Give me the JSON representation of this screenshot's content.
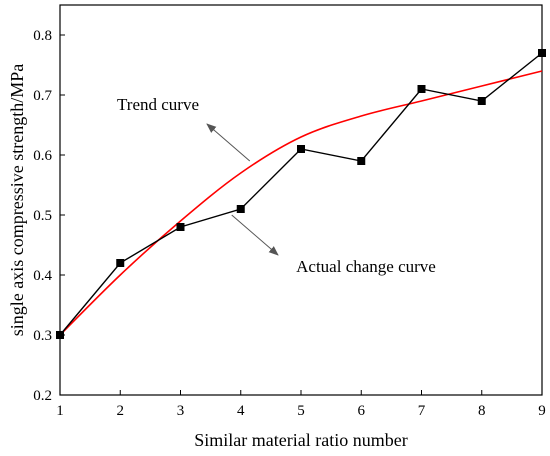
{
  "chart_data": {
    "type": "line",
    "title": "",
    "xlabel": "Similar material ratio number",
    "ylabel": "single axis compressive strength/MPa",
    "xlim": [
      1,
      9
    ],
    "ylim": [
      0.2,
      0.85
    ],
    "x_ticks": [
      1,
      2,
      3,
      4,
      5,
      6,
      7,
      8,
      9
    ],
    "y_ticks": [
      0.2,
      0.3,
      0.4,
      0.5,
      0.6,
      0.7,
      0.8
    ],
    "grid": false,
    "series": [
      {
        "name": "Actual change curve",
        "color": "#000000",
        "marker": "square",
        "x": [
          1,
          2,
          3,
          4,
          5,
          6,
          7,
          8,
          9
        ],
        "y": [
          0.3,
          0.42,
          0.48,
          0.51,
          0.61,
          0.59,
          0.71,
          0.69,
          0.77
        ]
      },
      {
        "name": "Trend curve",
        "color": "#ff0000",
        "marker": "none",
        "x": [
          1,
          2,
          3,
          4,
          5,
          6,
          7,
          8,
          9
        ],
        "y": [
          0.3,
          0.4,
          0.49,
          0.57,
          0.63,
          0.665,
          0.69,
          0.715,
          0.74
        ]
      }
    ],
    "annotations": [
      {
        "text": "Trend curve",
        "target_series": "Trend curve",
        "target_x": 4.15,
        "target_y": 0.59
      },
      {
        "text": "Actual change curve",
        "target_series": "Actual change curve",
        "target_x": 3.85,
        "target_y": 0.5
      }
    ]
  }
}
